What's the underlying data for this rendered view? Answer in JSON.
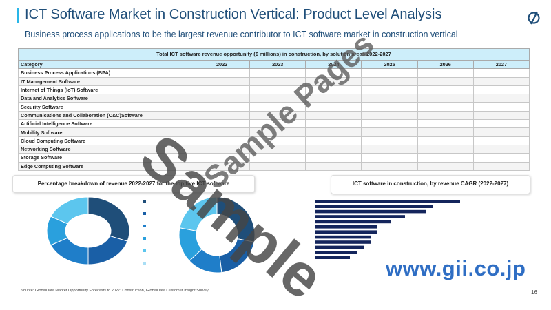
{
  "header": {
    "title": "ICT Software Market in Construction Vertical: Product Level Analysis",
    "subtitle": "Business process applications to be the largest revenue contributor to ICT software market in construction vertical"
  },
  "colors": {
    "accent": "#29b6e8",
    "title": "#1f4e79",
    "table_header": "#cdeefa",
    "donut_palette": [
      "#1f4e79",
      "#1a5fa6",
      "#1f7ec9",
      "#2aa0dd",
      "#5cc6ee",
      "#a9def5"
    ]
  },
  "table": {
    "caption": "Total ICT software revenue opportunity ($ millions) in construction, by solution areas 2022-2027",
    "col_header": "Category",
    "years": [
      "2022",
      "2023",
      "2024",
      "2025",
      "2026",
      "2027"
    ],
    "rows": [
      "Business Process Applications (BPA)",
      "IT Management Software",
      "Internet of Things (IoT) Software",
      "Data and Analytics Software",
      "Security Software",
      "Communications and Collaboration (C&C)Software",
      "Artificial Intelligence Software",
      "Mobility Software",
      "Cloud Computing Software",
      "Networking Software",
      "Storage Software",
      "Edge Computing Software"
    ]
  },
  "chart_data": [
    {
      "type": "pie",
      "title": "Percentage breakdown of revenue 2022-2027 for the top five ICT software",
      "donut": true,
      "values": [
        30,
        20,
        18,
        14,
        18
      ]
    },
    {
      "type": "pie",
      "donut": true,
      "values": [
        28,
        20,
        15,
        15,
        22
      ]
    },
    {
      "type": "bar",
      "orientation": "horizontal",
      "title": "ICT software in construction, by revenue CAGR (2022-2027)",
      "values": [
        21,
        17,
        16,
        13,
        11,
        9,
        9,
        8,
        8,
        7,
        6,
        5
      ]
    }
  ],
  "footer": {
    "watermark_site": "www.gii.co.jp",
    "source": "Source: GlobalData Market Opportunity Forecasts to 2027: Construction, GlobalData Customer Insight Survey",
    "page_number": "16"
  },
  "watermarks": {
    "main": "Sample",
    "secondary": "Sample Pages"
  }
}
